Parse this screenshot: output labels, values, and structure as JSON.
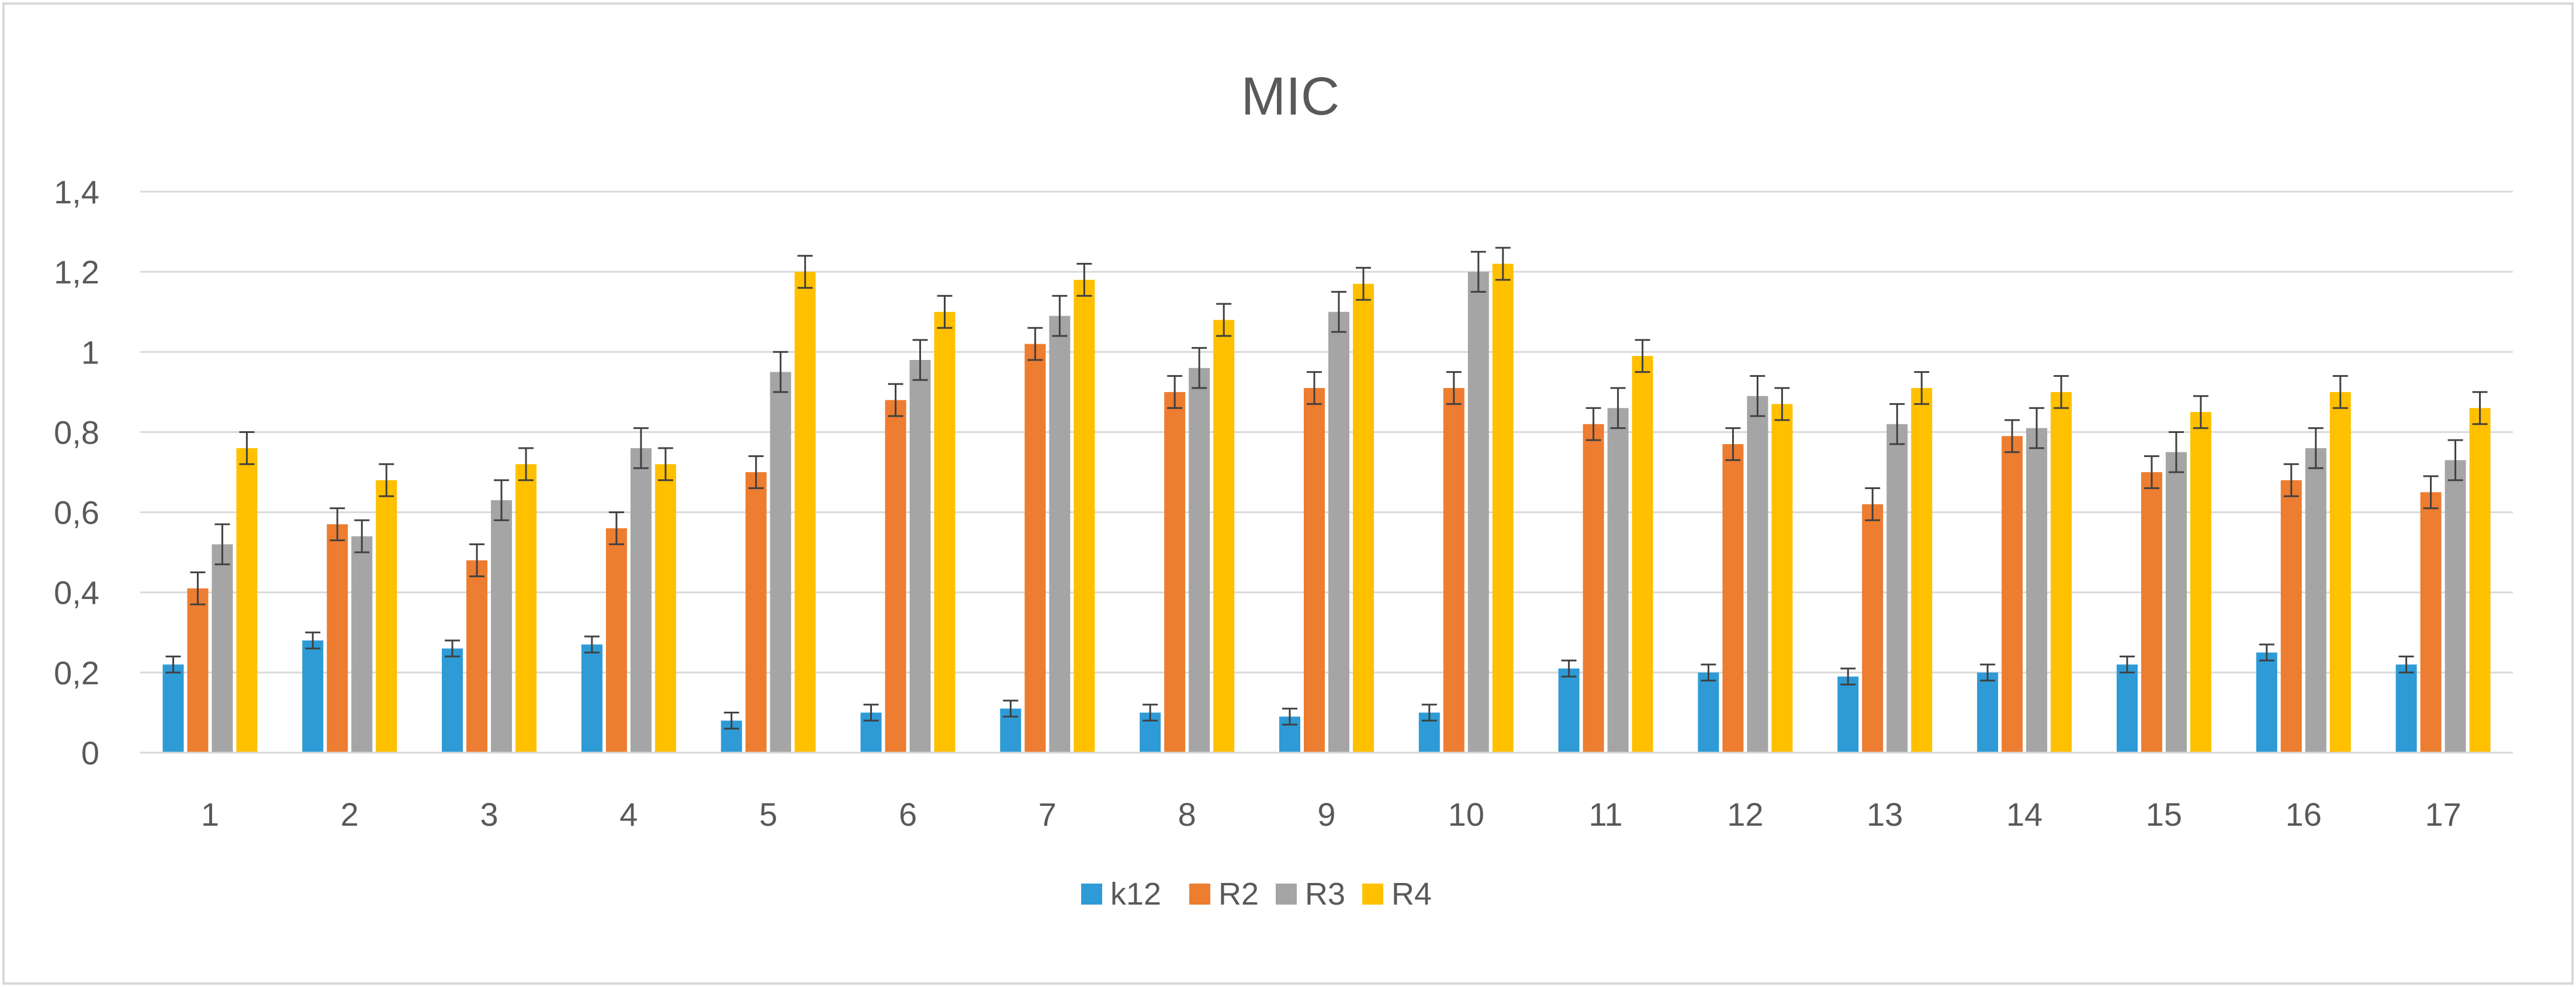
{
  "chart_data": {
    "type": "bar",
    "title": "MIC",
    "xlabel": "",
    "ylabel": "",
    "ylim": [
      0,
      1.4
    ],
    "yticks": [
      0,
      0.2,
      0.4,
      0.6,
      0.8,
      1,
      1.2,
      1.4
    ],
    "ytick_labels": [
      "0",
      "0,2",
      "0,4",
      "0,6",
      "0,8",
      "1",
      "1,2",
      "1,4"
    ],
    "categories": [
      "1",
      "2",
      "3",
      "4",
      "5",
      "6",
      "7",
      "8",
      "9",
      "10",
      "11",
      "12",
      "13",
      "14",
      "15",
      "16",
      "17"
    ],
    "grid": true,
    "legend_position": "bottom",
    "series": [
      {
        "name": "k12",
        "color": "#2E9BD6",
        "values": [
          0.22,
          0.28,
          0.26,
          0.27,
          0.08,
          0.1,
          0.11,
          0.1,
          0.09,
          0.1,
          0.21,
          0.2,
          0.19,
          0.2,
          0.22,
          0.25,
          0.22
        ],
        "errors": [
          0.02,
          0.02,
          0.02,
          0.02,
          0.02,
          0.02,
          0.02,
          0.02,
          0.02,
          0.02,
          0.02,
          0.02,
          0.02,
          0.02,
          0.02,
          0.02,
          0.02
        ]
      },
      {
        "name": "R2",
        "color": "#ED7D31",
        "values": [
          0.41,
          0.57,
          0.48,
          0.56,
          0.7,
          0.88,
          1.02,
          0.9,
          0.91,
          0.91,
          0.82,
          0.77,
          0.62,
          0.79,
          0.7,
          0.68,
          0.65
        ],
        "errors": [
          0.04,
          0.04,
          0.04,
          0.04,
          0.04,
          0.04,
          0.04,
          0.04,
          0.04,
          0.04,
          0.04,
          0.04,
          0.04,
          0.04,
          0.04,
          0.04,
          0.04
        ]
      },
      {
        "name": "R3",
        "color": "#A5A5A5",
        "values": [
          0.52,
          0.54,
          0.63,
          0.76,
          0.95,
          0.98,
          1.09,
          0.96,
          1.1,
          1.2,
          0.86,
          0.89,
          0.82,
          0.81,
          0.75,
          0.76,
          0.73
        ],
        "errors": [
          0.05,
          0.04,
          0.05,
          0.05,
          0.05,
          0.05,
          0.05,
          0.05,
          0.05,
          0.05,
          0.05,
          0.05,
          0.05,
          0.05,
          0.05,
          0.05,
          0.05
        ]
      },
      {
        "name": "R4",
        "color": "#FFC000",
        "values": [
          0.76,
          0.68,
          0.72,
          0.72,
          1.2,
          1.1,
          1.18,
          1.08,
          1.17,
          1.22,
          0.99,
          0.87,
          0.91,
          0.9,
          0.85,
          0.9,
          0.86
        ],
        "errors": [
          0.04,
          0.04,
          0.04,
          0.04,
          0.04,
          0.04,
          0.04,
          0.04,
          0.04,
          0.04,
          0.04,
          0.04,
          0.04,
          0.04,
          0.04,
          0.04,
          0.04
        ]
      }
    ]
  }
}
